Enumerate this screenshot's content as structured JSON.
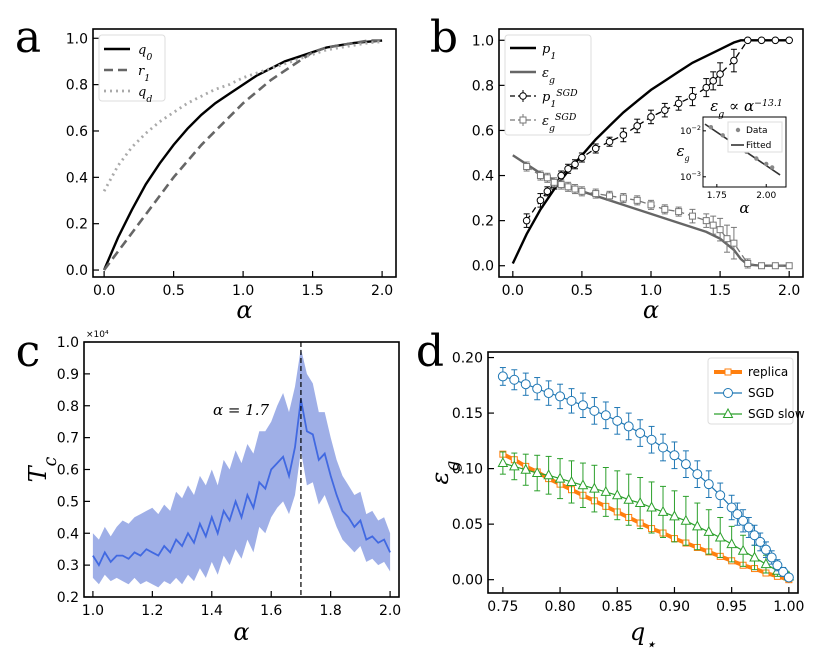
{
  "chart_data": [
    {
      "panel": "a",
      "type": "line",
      "xlabel": "α",
      "ylabel": "",
      "xlim": [
        -0.08,
        2.1
      ],
      "ylim": [
        -0.03,
        1.04
      ],
      "xticks": [
        0.0,
        0.5,
        1.0,
        1.5,
        2.0
      ],
      "yticks": [
        0.0,
        0.2,
        0.4,
        0.6,
        0.8,
        1.0
      ],
      "legend_position": "top-left",
      "series": [
        {
          "name": "q_0",
          "style": "solid",
          "color": "#000000",
          "x": [
            0,
            0.1,
            0.2,
            0.3,
            0.4,
            0.5,
            0.6,
            0.7,
            0.8,
            0.9,
            1.0,
            1.1,
            1.2,
            1.3,
            1.4,
            1.5,
            1.6,
            1.7,
            1.8,
            1.9,
            2.0
          ],
          "y": [
            0.0,
            0.14,
            0.26,
            0.37,
            0.46,
            0.54,
            0.61,
            0.67,
            0.72,
            0.76,
            0.8,
            0.84,
            0.87,
            0.9,
            0.92,
            0.94,
            0.96,
            0.97,
            0.98,
            0.985,
            0.99
          ]
        },
        {
          "name": "r_1",
          "style": "dashed",
          "color": "#666666",
          "x": [
            0,
            0.1,
            0.2,
            0.3,
            0.4,
            0.5,
            0.6,
            0.7,
            0.8,
            0.9,
            1.0,
            1.1,
            1.2,
            1.3,
            1.4,
            1.5,
            1.6,
            1.7,
            1.8,
            1.9,
            2.0
          ],
          "y": [
            0.0,
            0.08,
            0.16,
            0.24,
            0.32,
            0.4,
            0.47,
            0.54,
            0.6,
            0.66,
            0.72,
            0.77,
            0.82,
            0.86,
            0.9,
            0.94,
            0.96,
            0.97,
            0.98,
            0.99,
            0.99
          ]
        },
        {
          "name": "q_d",
          "style": "dotted",
          "color": "#aaaaaa",
          "x": [
            0,
            0.1,
            0.2,
            0.3,
            0.4,
            0.5,
            0.6,
            0.7,
            0.8,
            0.9,
            1.0,
            1.1,
            1.2,
            1.3,
            1.4,
            1.5,
            1.6,
            1.7,
            1.8,
            1.9,
            2.0
          ],
          "y": [
            0.34,
            0.45,
            0.53,
            0.59,
            0.64,
            0.68,
            0.72,
            0.75,
            0.78,
            0.8,
            0.83,
            0.85,
            0.87,
            0.89,
            0.91,
            0.93,
            0.95,
            0.96,
            0.97,
            0.98,
            0.985
          ]
        }
      ]
    },
    {
      "panel": "b",
      "type": "line",
      "xlabel": "α",
      "xlim": [
        -0.1,
        2.1
      ],
      "ylim": [
        -0.05,
        1.05
      ],
      "xticks": [
        0.0,
        0.5,
        1.0,
        1.5,
        2.0
      ],
      "yticks": [
        0.0,
        0.2,
        0.4,
        0.6,
        0.8,
        1.0
      ],
      "legend_position": "top-left",
      "series": [
        {
          "name": "p_1",
          "style": "solid",
          "color": "#000000",
          "x": [
            0,
            0.1,
            0.2,
            0.3,
            0.4,
            0.5,
            0.6,
            0.7,
            0.8,
            0.9,
            1.0,
            1.1,
            1.2,
            1.3,
            1.4,
            1.5,
            1.6,
            1.65,
            1.7,
            1.8,
            1.9,
            2.0
          ],
          "y": [
            0.01,
            0.14,
            0.25,
            0.34,
            0.42,
            0.49,
            0.56,
            0.62,
            0.68,
            0.73,
            0.78,
            0.82,
            0.86,
            0.9,
            0.93,
            0.96,
            0.99,
            1.0,
            1.0,
            1.0,
            1.0,
            1.0
          ]
        },
        {
          "name": "ε_g",
          "style": "solid",
          "color": "#666666",
          "x": [
            0,
            0.1,
            0.2,
            0.3,
            0.4,
            0.5,
            0.6,
            0.7,
            0.8,
            0.9,
            1.0,
            1.1,
            1.2,
            1.3,
            1.4,
            1.5,
            1.6,
            1.65,
            1.7,
            1.8,
            1.9,
            2.0
          ],
          "y": [
            0.49,
            0.45,
            0.41,
            0.38,
            0.35,
            0.33,
            0.31,
            0.29,
            0.27,
            0.25,
            0.23,
            0.21,
            0.19,
            0.17,
            0.15,
            0.12,
            0.07,
            0.03,
            0.005,
            0.0,
            0.0,
            0.0
          ]
        },
        {
          "name": "p_1^SGD",
          "style": "dashed-markers-circle",
          "color": "#000000",
          "x": [
            0.1,
            0.2,
            0.25,
            0.3,
            0.35,
            0.4,
            0.45,
            0.5,
            0.6,
            0.7,
            0.8,
            0.9,
            1.0,
            1.1,
            1.2,
            1.3,
            1.4,
            1.45,
            1.5,
            1.6,
            1.7,
            1.8,
            1.9,
            2.0
          ],
          "y": [
            0.2,
            0.29,
            0.33,
            0.36,
            0.4,
            0.43,
            0.45,
            0.48,
            0.52,
            0.55,
            0.58,
            0.62,
            0.66,
            0.69,
            0.72,
            0.75,
            0.79,
            0.82,
            0.85,
            0.91,
            1.0,
            1.0,
            1.0,
            1.0
          ],
          "err": [
            0.03,
            0.03,
            0.02,
            0.02,
            0.02,
            0.02,
            0.02,
            0.02,
            0.02,
            0.02,
            0.03,
            0.03,
            0.03,
            0.03,
            0.03,
            0.04,
            0.04,
            0.04,
            0.05,
            0.05,
            0.0,
            0.0,
            0.0,
            0.0
          ]
        },
        {
          "name": "ε_g^SGD",
          "style": "dashed-markers-square",
          "color": "#777777",
          "x": [
            0.1,
            0.2,
            0.25,
            0.3,
            0.35,
            0.4,
            0.45,
            0.5,
            0.6,
            0.7,
            0.8,
            0.9,
            1.0,
            1.1,
            1.2,
            1.3,
            1.4,
            1.45,
            1.5,
            1.55,
            1.6,
            1.7,
            1.8,
            1.9,
            2.0
          ],
          "y": [
            0.44,
            0.4,
            0.39,
            0.37,
            0.36,
            0.35,
            0.34,
            0.33,
            0.32,
            0.31,
            0.3,
            0.29,
            0.27,
            0.25,
            0.24,
            0.22,
            0.2,
            0.18,
            0.16,
            0.12,
            0.1,
            0.01,
            0.0,
            0.0,
            0.0
          ],
          "err": [
            0.02,
            0.02,
            0.02,
            0.02,
            0.02,
            0.02,
            0.02,
            0.02,
            0.02,
            0.02,
            0.02,
            0.02,
            0.02,
            0.02,
            0.02,
            0.03,
            0.03,
            0.04,
            0.05,
            0.06,
            0.07,
            0.02,
            0.0,
            0.0,
            0.0
          ]
        }
      ],
      "inset": {
        "title": "ε_g ∝ α^−13.1",
        "xlabel": "α",
        "ylabel": "ε_g",
        "xlim": [
          1.68,
          2.1
        ],
        "ylog": true,
        "ylim": [
          0.0006,
          0.02
        ],
        "xticks": [
          "1.75",
          "2.00"
        ],
        "yticks": [
          "10^-2",
          "10^-3"
        ],
        "data_name": "Data",
        "fit_name": "Fitted",
        "data_x": [
          1.72,
          1.78,
          1.85,
          1.9,
          1.95,
          2.0,
          2.03
        ],
        "data_y": [
          0.012,
          0.008,
          0.005,
          0.0035,
          0.0025,
          0.0019,
          0.0016
        ],
        "fit_x": [
          1.69,
          2.07
        ],
        "fit_y": [
          0.014,
          0.0011
        ]
      }
    },
    {
      "panel": "c",
      "type": "area",
      "xlabel": "α",
      "ylabel": "T_c",
      "scale_label": "×10⁴",
      "xlim": [
        0.97,
        2.03
      ],
      "ylim": [
        0.2,
        1.0
      ],
      "xticks": [
        1.0,
        1.2,
        1.4,
        1.6,
        1.8,
        2.0
      ],
      "yticks": [
        0.2,
        0.3,
        0.4,
        0.5,
        0.6,
        0.7,
        0.8,
        0.9,
        1.0
      ],
      "vline": 1.7,
      "annotation": "α = 1.7",
      "color": "#4060d0",
      "x": [
        1.0,
        1.02,
        1.04,
        1.06,
        1.08,
        1.1,
        1.12,
        1.14,
        1.16,
        1.18,
        1.2,
        1.22,
        1.24,
        1.26,
        1.28,
        1.3,
        1.32,
        1.34,
        1.36,
        1.38,
        1.4,
        1.42,
        1.44,
        1.46,
        1.48,
        1.5,
        1.52,
        1.54,
        1.56,
        1.58,
        1.6,
        1.62,
        1.64,
        1.66,
        1.68,
        1.7,
        1.72,
        1.74,
        1.76,
        1.78,
        1.8,
        1.82,
        1.84,
        1.86,
        1.88,
        1.9,
        1.92,
        1.94,
        1.96,
        1.98,
        2.0
      ],
      "mean": [
        0.33,
        0.3,
        0.34,
        0.31,
        0.33,
        0.33,
        0.32,
        0.34,
        0.33,
        0.35,
        0.34,
        0.33,
        0.36,
        0.34,
        0.38,
        0.36,
        0.4,
        0.37,
        0.43,
        0.39,
        0.45,
        0.4,
        0.47,
        0.44,
        0.5,
        0.45,
        0.52,
        0.48,
        0.56,
        0.54,
        0.6,
        0.62,
        0.64,
        0.58,
        0.67,
        0.82,
        0.72,
        0.71,
        0.63,
        0.65,
        0.58,
        0.52,
        0.47,
        0.45,
        0.42,
        0.44,
        0.38,
        0.39,
        0.37,
        0.38,
        0.34
      ],
      "upper": [
        0.4,
        0.38,
        0.42,
        0.39,
        0.42,
        0.44,
        0.43,
        0.45,
        0.46,
        0.47,
        0.48,
        0.46,
        0.49,
        0.47,
        0.53,
        0.51,
        0.55,
        0.52,
        0.58,
        0.55,
        0.6,
        0.55,
        0.63,
        0.6,
        0.66,
        0.62,
        0.68,
        0.65,
        0.72,
        0.72,
        0.75,
        0.8,
        0.84,
        0.78,
        0.86,
        0.98,
        0.9,
        0.87,
        0.78,
        0.78,
        0.7,
        0.63,
        0.58,
        0.55,
        0.52,
        0.53,
        0.46,
        0.47,
        0.44,
        0.45,
        0.4
      ],
      "lower": [
        0.26,
        0.24,
        0.27,
        0.25,
        0.26,
        0.25,
        0.24,
        0.26,
        0.24,
        0.25,
        0.24,
        0.23,
        0.25,
        0.24,
        0.26,
        0.24,
        0.27,
        0.25,
        0.29,
        0.26,
        0.31,
        0.27,
        0.33,
        0.3,
        0.35,
        0.32,
        0.38,
        0.34,
        0.42,
        0.4,
        0.45,
        0.48,
        0.5,
        0.46,
        0.52,
        0.66,
        0.55,
        0.56,
        0.49,
        0.52,
        0.47,
        0.42,
        0.38,
        0.36,
        0.34,
        0.36,
        0.31,
        0.32,
        0.3,
        0.31,
        0.28
      ]
    },
    {
      "panel": "d",
      "type": "line",
      "xlabel": "q_⋆",
      "ylabel": "ε_g",
      "xlim": [
        0.737,
        1.008
      ],
      "ylim": [
        -0.012,
        0.205
      ],
      "xticks": [
        0.75,
        0.8,
        0.85,
        0.9,
        0.95,
        1.0
      ],
      "yticks": [
        0.0,
        0.05,
        0.1,
        0.15,
        0.2
      ],
      "legend_position": "top-right",
      "series": [
        {
          "name": "replica",
          "color": "#ff7f0e",
          "marker": "square",
          "x": [
            0.75,
            0.76,
            0.77,
            0.78,
            0.79,
            0.8,
            0.81,
            0.82,
            0.83,
            0.84,
            0.85,
            0.86,
            0.87,
            0.88,
            0.89,
            0.9,
            0.91,
            0.92,
            0.93,
            0.94,
            0.95,
            0.96,
            0.97,
            0.98,
            0.99,
            1.0
          ],
          "y": [
            0.113,
            0.108,
            0.102,
            0.097,
            0.091,
            0.086,
            0.081,
            0.076,
            0.071,
            0.066,
            0.061,
            0.056,
            0.051,
            0.046,
            0.042,
            0.037,
            0.033,
            0.029,
            0.025,
            0.021,
            0.017,
            0.013,
            0.01,
            0.006,
            0.003,
            0.0
          ]
        },
        {
          "name": "SGD",
          "color": "#1f77b4",
          "marker": "circle",
          "x": [
            0.75,
            0.76,
            0.77,
            0.78,
            0.79,
            0.8,
            0.81,
            0.82,
            0.83,
            0.84,
            0.85,
            0.86,
            0.87,
            0.88,
            0.89,
            0.9,
            0.91,
            0.92,
            0.93,
            0.94,
            0.95,
            0.955,
            0.96,
            0.965,
            0.97,
            0.975,
            0.98,
            0.985,
            0.99,
            0.995,
            1.0
          ],
          "y": [
            0.183,
            0.18,
            0.176,
            0.172,
            0.168,
            0.165,
            0.161,
            0.157,
            0.152,
            0.148,
            0.143,
            0.138,
            0.132,
            0.126,
            0.119,
            0.112,
            0.104,
            0.095,
            0.086,
            0.076,
            0.065,
            0.059,
            0.053,
            0.047,
            0.04,
            0.034,
            0.027,
            0.02,
            0.013,
            0.007,
            0.002
          ],
          "err": [
            0.008,
            0.009,
            0.01,
            0.01,
            0.011,
            0.011,
            0.011,
            0.011,
            0.012,
            0.012,
            0.012,
            0.012,
            0.012,
            0.012,
            0.012,
            0.012,
            0.012,
            0.012,
            0.012,
            0.011,
            0.011,
            0.01,
            0.01,
            0.009,
            0.009,
            0.008,
            0.007,
            0.006,
            0.005,
            0.004,
            0.003
          ]
        },
        {
          "name": "SGD slow",
          "color": "#2ca02c",
          "marker": "triangle",
          "x": [
            0.75,
            0.76,
            0.77,
            0.78,
            0.79,
            0.8,
            0.81,
            0.82,
            0.83,
            0.84,
            0.85,
            0.86,
            0.87,
            0.88,
            0.89,
            0.9,
            0.91,
            0.92,
            0.93,
            0.94,
            0.95,
            0.96,
            0.97,
            0.98,
            0.99,
            1.0
          ],
          "y": [
            0.105,
            0.102,
            0.099,
            0.096,
            0.094,
            0.091,
            0.088,
            0.085,
            0.082,
            0.079,
            0.076,
            0.072,
            0.069,
            0.065,
            0.061,
            0.057,
            0.053,
            0.048,
            0.043,
            0.038,
            0.032,
            0.026,
            0.02,
            0.014,
            0.008,
            0.003
          ],
          "err": [
            0.01,
            0.012,
            0.014,
            0.016,
            0.017,
            0.018,
            0.019,
            0.02,
            0.021,
            0.022,
            0.022,
            0.023,
            0.023,
            0.023,
            0.023,
            0.023,
            0.022,
            0.021,
            0.02,
            0.018,
            0.016,
            0.014,
            0.011,
            0.008,
            0.005,
            0.002
          ]
        }
      ]
    }
  ]
}
